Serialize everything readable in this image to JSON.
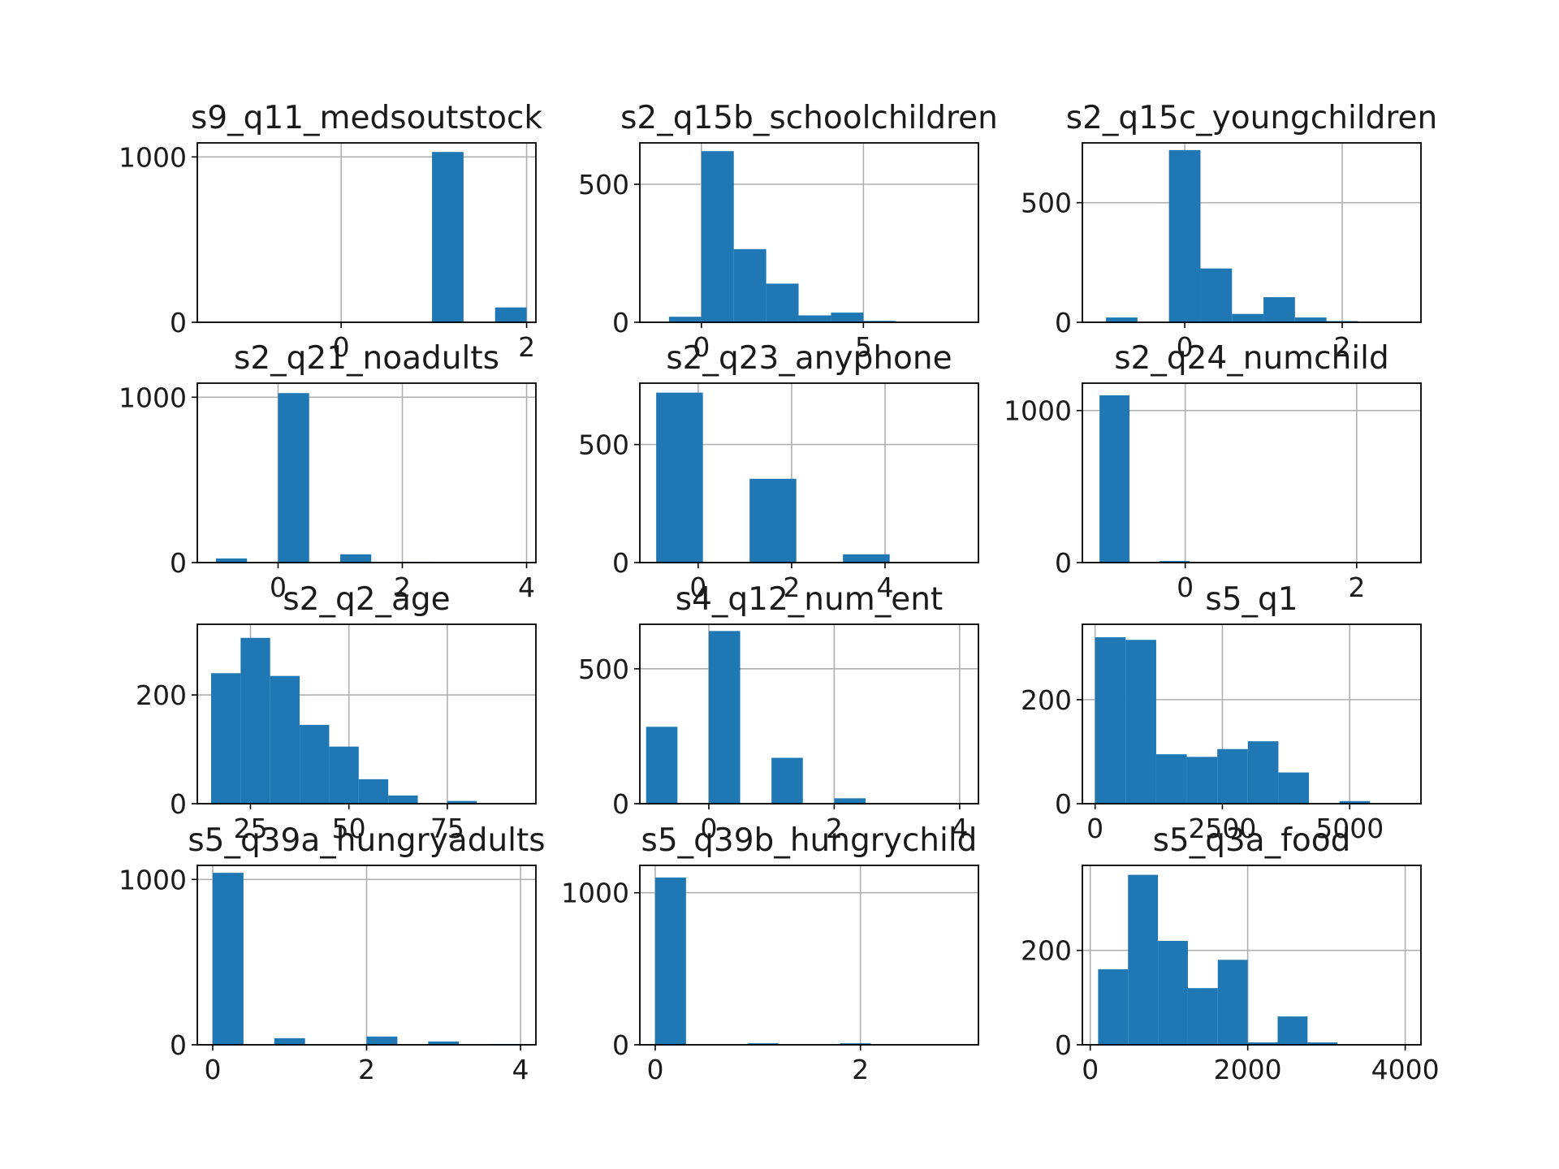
{
  "colors": {
    "bar": "#1f77b4",
    "grid": "#b0b0b0",
    "axis": "#000000",
    "background": "#ffffff"
  },
  "chart_data": [
    {
      "type": "bar",
      "title": "s9_q11_medsoutstock",
      "grid": true,
      "xlim": [
        -1.55,
        2.1
      ],
      "ylim": [
        0,
        1085
      ],
      "xticks": [
        0,
        2
      ],
      "yticks": [
        0,
        1000
      ],
      "bins": [
        [
          -1.4,
          -1.06,
          0
        ],
        [
          -1.06,
          -0.72,
          0
        ],
        [
          -0.72,
          -0.38,
          0
        ],
        [
          -0.38,
          -0.04,
          0
        ],
        [
          -0.04,
          0.3,
          0
        ],
        [
          0.3,
          0.64,
          0
        ],
        [
          0.64,
          0.98,
          0
        ],
        [
          0.98,
          1.32,
          1030
        ],
        [
          1.32,
          1.66,
          0
        ],
        [
          1.66,
          2.0,
          90
        ]
      ]
    },
    {
      "type": "bar",
      "title": "s2_q15b_schoolchildren",
      "grid": true,
      "xlim": [
        -1.9,
        8.55
      ],
      "ylim": [
        0,
        650
      ],
      "xticks": [
        0,
        5
      ],
      "yticks": [
        0,
        500
      ],
      "bins": [
        [
          -1.0,
          0.0,
          20
        ],
        [
          0.0,
          1.0,
          620
        ],
        [
          1.0,
          2.0,
          265
        ],
        [
          2.0,
          3.0,
          140
        ],
        [
          3.0,
          4.0,
          25
        ],
        [
          4.0,
          5.0,
          35
        ],
        [
          5.0,
          6.0,
          5
        ],
        [
          6.0,
          7.0,
          0
        ],
        [
          7.0,
          8.0,
          0
        ],
        [
          8.0,
          9.0,
          0
        ]
      ]
    },
    {
      "type": "bar",
      "title": "s2_q15c_youngchildren",
      "grid": true,
      "xlim": [
        -1.3,
        3.0
      ],
      "ylim": [
        0,
        750
      ],
      "xticks": [
        0,
        2
      ],
      "yticks": [
        0,
        500
      ],
      "bins": [
        [
          -1.0,
          -0.6,
          20
        ],
        [
          -0.6,
          -0.2,
          0
        ],
        [
          -0.2,
          0.2,
          720
        ],
        [
          0.2,
          0.6,
          225
        ],
        [
          0.6,
          1.0,
          35
        ],
        [
          1.0,
          1.4,
          105
        ],
        [
          1.4,
          1.8,
          20
        ],
        [
          1.8,
          2.2,
          5
        ],
        [
          2.2,
          2.6,
          0
        ],
        [
          2.6,
          3.0,
          0
        ]
      ]
    },
    {
      "type": "bar",
      "title": "s2_q21_noadults",
      "grid": true,
      "xlim": [
        -1.3,
        4.15
      ],
      "ylim": [
        0,
        1085
      ],
      "xticks": [
        0,
        2,
        4
      ],
      "yticks": [
        0,
        1000
      ],
      "bins": [
        [
          -1.0,
          -0.5,
          25
        ],
        [
          -0.5,
          0.0,
          0
        ],
        [
          0.0,
          0.5,
          1025
        ],
        [
          0.5,
          1.0,
          0
        ],
        [
          1.0,
          1.5,
          50
        ],
        [
          1.5,
          2.0,
          0
        ],
        [
          2.0,
          2.5,
          5
        ],
        [
          2.5,
          3.0,
          0
        ],
        [
          3.0,
          3.5,
          0
        ],
        [
          3.5,
          4.0,
          0
        ]
      ]
    },
    {
      "type": "bar",
      "title": "s2_q23_anyphone",
      "grid": true,
      "xlim": [
        -1.25,
        6.0
      ],
      "ylim": [
        0,
        760
      ],
      "xticks": [
        0,
        2,
        4
      ],
      "yticks": [
        0,
        500
      ],
      "bins": [
        [
          -0.9,
          0.1,
          720
        ],
        [
          0.1,
          1.1,
          0
        ],
        [
          1.1,
          2.1,
          355
        ],
        [
          2.1,
          3.1,
          0
        ],
        [
          3.1,
          4.1,
          35
        ],
        [
          4.1,
          5.1,
          0
        ],
        [
          5.1,
          6.1,
          0
        ]
      ]
    },
    {
      "type": "bar",
      "title": "s2_q24_numchild",
      "grid": true,
      "xlim": [
        -1.2,
        2.75
      ],
      "ylim": [
        0,
        1180
      ],
      "xticks": [
        0,
        2
      ],
      "yticks": [
        0,
        1000
      ],
      "bins": [
        [
          -1.0,
          -0.65,
          1100
        ],
        [
          -0.65,
          -0.3,
          0
        ],
        [
          -0.3,
          0.05,
          10
        ],
        [
          0.05,
          0.4,
          0
        ],
        [
          0.4,
          0.75,
          0
        ],
        [
          0.75,
          1.1,
          0
        ],
        [
          1.1,
          1.45,
          0
        ],
        [
          1.45,
          1.8,
          0
        ],
        [
          1.8,
          2.15,
          0
        ],
        [
          2.15,
          2.5,
          0
        ]
      ]
    },
    {
      "type": "bar",
      "title": "s2_q2_age",
      "grid": true,
      "xlim": [
        11.5,
        97.5
      ],
      "ylim": [
        0,
        330
      ],
      "xticks": [
        25,
        50,
        75
      ],
      "yticks": [
        0,
        200
      ],
      "bins": [
        [
          15,
          22.5,
          240
        ],
        [
          22.5,
          30,
          305
        ],
        [
          30,
          37.5,
          235
        ],
        [
          37.5,
          45,
          145
        ],
        [
          45,
          52.5,
          105
        ],
        [
          52.5,
          60,
          45
        ],
        [
          60,
          67.5,
          15
        ],
        [
          67.5,
          75,
          0
        ],
        [
          75,
          82.5,
          5
        ],
        [
          82.5,
          90,
          0
        ]
      ]
    },
    {
      "type": "bar",
      "title": "s4_q12_num_ent",
      "grid": true,
      "xlim": [
        -1.1,
        4.3
      ],
      "ylim": [
        0,
        665
      ],
      "xticks": [
        0,
        2,
        4
      ],
      "yticks": [
        0,
        500
      ],
      "bins": [
        [
          -1.0,
          -0.5,
          285
        ],
        [
          -0.5,
          0.0,
          0
        ],
        [
          0.0,
          0.5,
          640
        ],
        [
          0.5,
          1.0,
          0
        ],
        [
          1.0,
          1.5,
          170
        ],
        [
          1.5,
          2.0,
          0
        ],
        [
          2.0,
          2.5,
          20
        ],
        [
          2.5,
          3.0,
          0
        ],
        [
          3.0,
          3.5,
          0
        ],
        [
          3.5,
          4.0,
          0
        ]
      ]
    },
    {
      "type": "bar",
      "title": "s5_q1",
      "grid": true,
      "xlim": [
        -250,
        6400
      ],
      "ylim": [
        0,
        345
      ],
      "xticks": [
        0,
        2500,
        5000
      ],
      "yticks": [
        0,
        200
      ],
      "bins": [
        [
          0,
          600,
          320
        ],
        [
          600,
          1200,
          315
        ],
        [
          1200,
          1800,
          95
        ],
        [
          1800,
          2400,
          90
        ],
        [
          2400,
          3000,
          105
        ],
        [
          3000,
          3600,
          120
        ],
        [
          3600,
          4200,
          60
        ],
        [
          4200,
          4800,
          0
        ],
        [
          4800,
          5400,
          5
        ],
        [
          5400,
          6000,
          0
        ]
      ]
    },
    {
      "type": "bar",
      "title": "s5_q39a_hungryadults",
      "grid": true,
      "xlim": [
        -0.2,
        4.2
      ],
      "ylim": [
        0,
        1085
      ],
      "xticks": [
        0,
        2,
        4
      ],
      "yticks": [
        0,
        1000
      ],
      "bins": [
        [
          0.0,
          0.4,
          1040
        ],
        [
          0.4,
          0.8,
          0
        ],
        [
          0.8,
          1.2,
          40
        ],
        [
          1.2,
          1.6,
          0
        ],
        [
          1.6,
          2.0,
          0
        ],
        [
          2.0,
          2.4,
          50
        ],
        [
          2.4,
          2.8,
          0
        ],
        [
          2.8,
          3.2,
          20
        ],
        [
          3.2,
          3.6,
          0
        ],
        [
          3.6,
          4.0,
          5
        ]
      ]
    },
    {
      "type": "bar",
      "title": "s5_q39b_hungrychild",
      "grid": true,
      "xlim": [
        -0.15,
        3.15
      ],
      "ylim": [
        0,
        1180
      ],
      "xticks": [
        0,
        2
      ],
      "yticks": [
        0,
        1000
      ],
      "bins": [
        [
          0.0,
          0.3,
          1100
        ],
        [
          0.3,
          0.6,
          0
        ],
        [
          0.6,
          0.9,
          0
        ],
        [
          0.9,
          1.2,
          10
        ],
        [
          1.2,
          1.5,
          0
        ],
        [
          1.5,
          1.8,
          0
        ],
        [
          1.8,
          2.1,
          10
        ],
        [
          2.1,
          2.4,
          0
        ],
        [
          2.4,
          2.7,
          0
        ],
        [
          2.7,
          3.0,
          0
        ]
      ]
    },
    {
      "type": "bar",
      "title": "s5_q3a_food",
      "grid": true,
      "xlim": [
        -100,
        4200
      ],
      "ylim": [
        0,
        380
      ],
      "xticks": [
        0,
        2000,
        4000
      ],
      "yticks": [
        0,
        200
      ],
      "bins": [
        [
          100,
          480,
          160
        ],
        [
          480,
          860,
          360
        ],
        [
          860,
          1240,
          220
        ],
        [
          1240,
          1620,
          120
        ],
        [
          1620,
          2000,
          180
        ],
        [
          2000,
          2380,
          5
        ],
        [
          2380,
          2760,
          60
        ],
        [
          2760,
          3140,
          5
        ],
        [
          3140,
          3520,
          0
        ],
        [
          3520,
          3900,
          0
        ]
      ]
    }
  ]
}
